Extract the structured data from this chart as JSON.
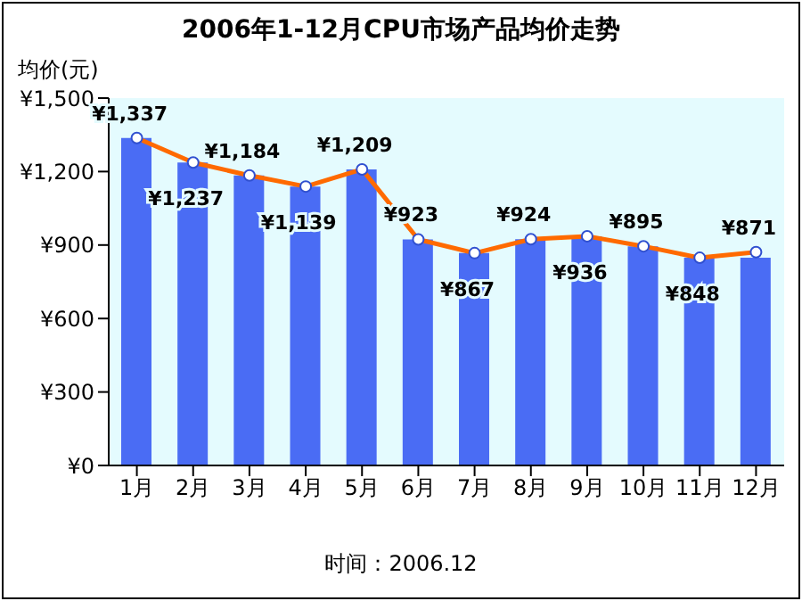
{
  "chart_data": {
    "type": "bar",
    "title": "2006年1-12月CPU市场产品均价走势",
    "ylabel": "均价(元)",
    "annotations": [
      "时间：2006.12"
    ],
    "categories": [
      "1月",
      "2月",
      "3月",
      "4月",
      "5月",
      "6月",
      "7月",
      "8月",
      "9月",
      "10月",
      "11月",
      "12月"
    ],
    "series": [
      {
        "color": "#4a6cf4",
        "values": [
          1337,
          1237,
          1184,
          1139,
          1209,
          923,
          867,
          924,
          936,
          895,
          848,
          848
        ]
      },
      {
        "type": "line",
        "color": "#ff6a00",
        "marker": "circle",
        "values": [
          1337,
          1237,
          1184,
          1139,
          1209,
          923,
          867,
          924,
          936,
          895,
          848,
          871
        ],
        "value_labels": [
          "¥1,337",
          "¥1,237",
          "¥1,184",
          "¥1,139",
          "¥1,209",
          "¥923",
          "¥867",
          "¥924",
          "¥936",
          "¥895",
          "¥848",
          "¥871"
        ]
      }
    ],
    "ylim": [
      0,
      1500
    ],
    "yticks": [
      {
        "value": 0,
        "label": "¥0"
      },
      {
        "value": 300,
        "label": "¥300"
      },
      {
        "value": 600,
        "label": "¥600"
      },
      {
        "value": 900,
        "label": "¥900"
      },
      {
        "value": 1200,
        "label": "¥1,200"
      },
      {
        "value": 1500,
        "label": "¥1,500"
      }
    ],
    "grid": false,
    "legend": false
  }
}
